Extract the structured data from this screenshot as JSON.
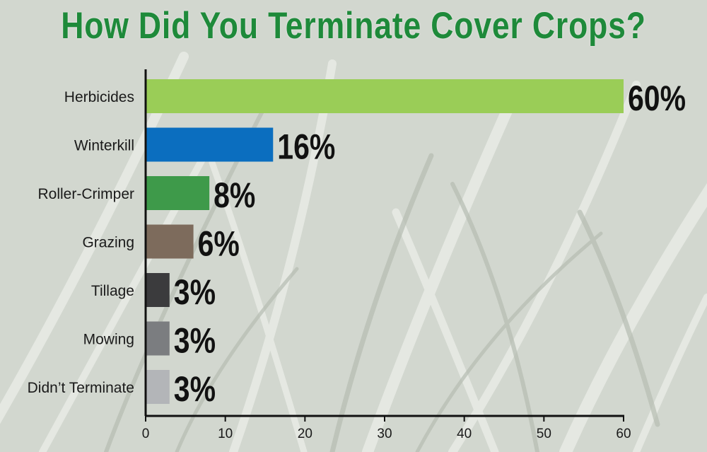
{
  "chart_data": {
    "type": "bar",
    "orientation": "horizontal",
    "title": "How Did You Terminate Cover Crops?",
    "categories": [
      "Herbicides",
      "Winterkill",
      "Roller-Crimper",
      "Grazing",
      "Tillage",
      "Mowing",
      "Didn’t Terminate"
    ],
    "values": [
      60,
      16,
      8,
      6,
      3,
      3,
      3
    ],
    "value_labels": [
      "60%",
      "16%",
      "8%",
      "6%",
      "3%",
      "3%",
      "3%"
    ],
    "bar_colors": [
      "#9acd57",
      "#0b6ebf",
      "#3e9a4a",
      "#7d6b5c",
      "#3b3b3d",
      "#7b7d80",
      "#b3b5b8"
    ],
    "xlim": [
      0,
      60
    ],
    "xticks": [
      "0",
      "10",
      "20",
      "30",
      "40",
      "50",
      "60"
    ],
    "xlabel": "",
    "ylabel": "",
    "grid": false,
    "title_color": "#1e8a3a",
    "background": "grass photo"
  }
}
